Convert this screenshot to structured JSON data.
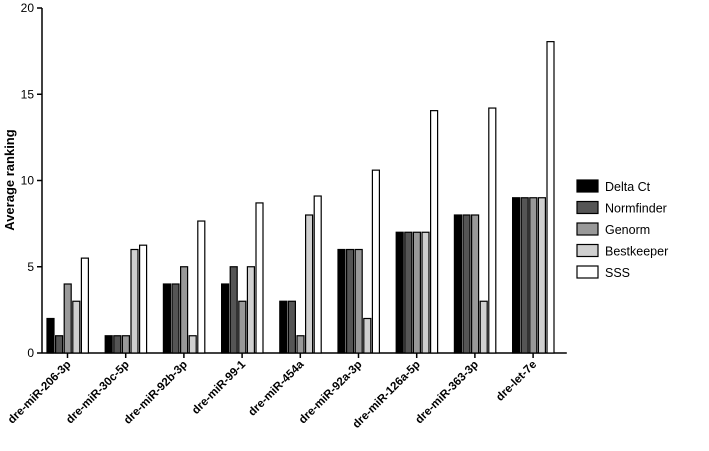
{
  "chart_data": {
    "type": "bar",
    "title": "",
    "xlabel": "",
    "ylabel": "Average ranking",
    "ylim": [
      0,
      20
    ],
    "yticks": [
      0,
      5,
      10,
      15,
      20
    ],
    "grid": false,
    "legend_position": "right",
    "categories": [
      "dre-miR-206-3p",
      "dre-miR-30c-5p",
      "dre-miR-92b-3p",
      "dre-miR-99-1",
      "dre-miR-454a",
      "dre-miR-92a-3p",
      "dre-miR-126a-5p",
      "dre-miR-363-3p",
      "dre-let-7e"
    ],
    "series": [
      {
        "name": "Delta Ct",
        "color": "#000000",
        "values": [
          2,
          1,
          4,
          4,
          3,
          6,
          7,
          8,
          9
        ]
      },
      {
        "name": "Normfinder",
        "color": "#555555",
        "values": [
          1,
          1,
          4,
          5,
          3,
          6,
          7,
          8,
          9
        ]
      },
      {
        "name": "Genorm",
        "color": "#999999",
        "values": [
          4,
          1,
          5,
          3,
          1,
          6,
          7,
          8,
          9
        ]
      },
      {
        "name": "Bestkeeper",
        "color": "#d0d0d0",
        "values": [
          3,
          6,
          1,
          5,
          8,
          2,
          7,
          3,
          9
        ]
      },
      {
        "name": "SSS",
        "color": "#ffffff",
        "values": [
          5.5,
          6.25,
          7.65,
          8.7,
          9.1,
          10.6,
          14.05,
          14.2,
          18.05
        ]
      }
    ]
  }
}
